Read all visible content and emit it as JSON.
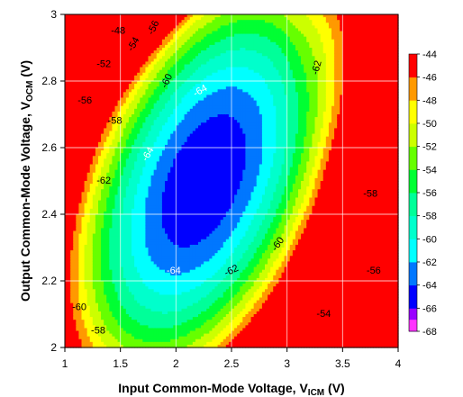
{
  "chart_data": {
    "type": "contour",
    "xlabel": "Input Common-Mode Voltage, V",
    "xlabel_sub": "ICM",
    "xlabel_unit": " (V)",
    "ylabel": "Output Common-Mode Voltage, V",
    "ylabel_sub": "OCM",
    "ylabel_unit": " (V)",
    "xlim": [
      1,
      4
    ],
    "ylim": [
      2,
      3
    ],
    "x_ticks": [
      "1",
      "1.5",
      "2",
      "2.5",
      "3",
      "3.5",
      "4"
    ],
    "y_ticks": [
      "2",
      "2.2",
      "2.4",
      "2.6",
      "2.8",
      "3"
    ],
    "grid": true,
    "colorbar": {
      "placement": "right",
      "levels": [
        -68,
        -66,
        -64,
        -62,
        -60,
        -58,
        -56,
        -54,
        -52,
        -50,
        -48,
        -46,
        -44
      ],
      "colors": [
        "#ff33ff",
        "#9900ff",
        "#0000ff",
        "#0077ff",
        "#00ffff",
        "#00ffcc",
        "#00ff99",
        "#00ff33",
        "#66ff00",
        "#ccff00",
        "#ffff00",
        "#ff9900",
        "#ff0000"
      ],
      "tick_labels": [
        "-68",
        "-66",
        "-64",
        "-62",
        "-60",
        "-58",
        "-56",
        "-54",
        "-52",
        "-50",
        "-48",
        "-46",
        "-44"
      ]
    },
    "contour_labels": [
      {
        "text": "-48",
        "x": 1.48,
        "y": 2.95,
        "rot": 0
      },
      {
        "text": "-54",
        "x": 1.62,
        "y": 2.91,
        "rot": -60
      },
      {
        "text": "-56",
        "x": 1.8,
        "y": 2.96,
        "rot": -65
      },
      {
        "text": "-52",
        "x": 1.35,
        "y": 2.85,
        "rot": 0
      },
      {
        "text": "-56",
        "x": 1.18,
        "y": 2.74,
        "rot": 0
      },
      {
        "text": "-58",
        "x": 1.45,
        "y": 2.68,
        "rot": 0
      },
      {
        "text": "-60",
        "x": 1.92,
        "y": 2.8,
        "rot": -65
      },
      {
        "text": "-64",
        "x": 2.22,
        "y": 2.77,
        "rot": -30,
        "white": true
      },
      {
        "text": "-64",
        "x": 1.75,
        "y": 2.58,
        "rot": -60,
        "white": true
      },
      {
        "text": "-62",
        "x": 1.35,
        "y": 2.5,
        "rot": 0
      },
      {
        "text": "-62",
        "x": 3.27,
        "y": 2.84,
        "rot": -75
      },
      {
        "text": "-64",
        "x": 1.98,
        "y": 2.23,
        "rot": 0,
        "white": true
      },
      {
        "text": "-62",
        "x": 2.5,
        "y": 2.23,
        "rot": -25
      },
      {
        "text": "-60",
        "x": 2.92,
        "y": 2.31,
        "rot": -55
      },
      {
        "text": "-58",
        "x": 3.75,
        "y": 2.46,
        "rot": 0
      },
      {
        "text": "-56",
        "x": 3.78,
        "y": 2.23,
        "rot": 0
      },
      {
        "text": "-54",
        "x": 3.33,
        "y": 2.1,
        "rot": 0
      },
      {
        "text": "-60",
        "x": 1.13,
        "y": 2.12,
        "rot": 0
      },
      {
        "text": "-58",
        "x": 1.3,
        "y": 2.05,
        "rot": 0
      }
    ]
  }
}
